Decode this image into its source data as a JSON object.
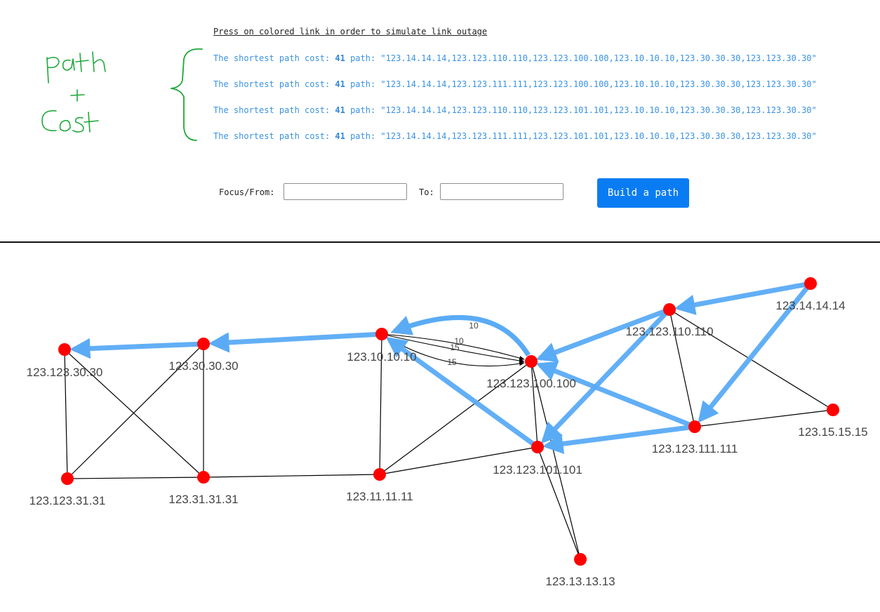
{
  "annotation": {
    "handwritten": "path + cost"
  },
  "header": {
    "hint": "Press on colored link in order to simulate link outage"
  },
  "paths": [
    {
      "prefix": "The shortest path cost: ",
      "cost": "41",
      "mid": " path: ",
      "route": "\"123.14.14.14,123.123.110.110,123.123.100.100,123.10.10.10,123.30.30.30,123.123.30.30\""
    },
    {
      "prefix": "The shortest path cost: ",
      "cost": "41",
      "mid": " path: ",
      "route": "\"123.14.14.14,123.123.111.111,123.123.100.100,123.10.10.10,123.30.30.30,123.123.30.30\""
    },
    {
      "prefix": "The shortest path cost: ",
      "cost": "41",
      "mid": " path: ",
      "route": "\"123.14.14.14,123.123.110.110,123.123.101.101,123.10.10.10,123.30.30.30,123.123.30.30\""
    },
    {
      "prefix": "The shortest path cost: ",
      "cost": "41",
      "mid": " path: ",
      "route": "\"123.14.14.14,123.123.111.111,123.123.101.101,123.10.10.10,123.30.30.30,123.123.30.30\""
    }
  ],
  "form": {
    "from_label": "Focus/From:",
    "from_value": "",
    "to_label": "To:",
    "to_value": "",
    "button_label": "Build a path"
  },
  "colors": {
    "node": "#ff0000",
    "path_edge": "#5aabf5",
    "edge": "#000000",
    "accent": "#0a7cf3"
  },
  "graph": {
    "nodes": [
      {
        "id": "123.123.30.30",
        "label": "123.123.30.30"
      },
      {
        "id": "123.30.30.30",
        "label": "123.30.30.30"
      },
      {
        "id": "123.10.10.10",
        "label": "123.10.10.10"
      },
      {
        "id": "123.123.100.100",
        "label": "123.123.100.100"
      },
      {
        "id": "123.123.110.110",
        "label": "123.123.110.110"
      },
      {
        "id": "123.14.14.14",
        "label": "123.14.14.14"
      },
      {
        "id": "123.15.15.15",
        "label": "123.15.15.15"
      },
      {
        "id": "123.123.111.111",
        "label": "123.123.111.111"
      },
      {
        "id": "123.123.101.101",
        "label": "123.123.101.101"
      },
      {
        "id": "123.11.11.11",
        "label": "123.11.11.11"
      },
      {
        "id": "123.31.31.31",
        "label": "123.31.31.31"
      },
      {
        "id": "123.123.31.31",
        "label": "123.123.31.31"
      },
      {
        "id": "123.13.13.13",
        "label": "123.13.13.13"
      }
    ],
    "edge_labels": [
      "10",
      "10",
      "15",
      "15"
    ]
  }
}
